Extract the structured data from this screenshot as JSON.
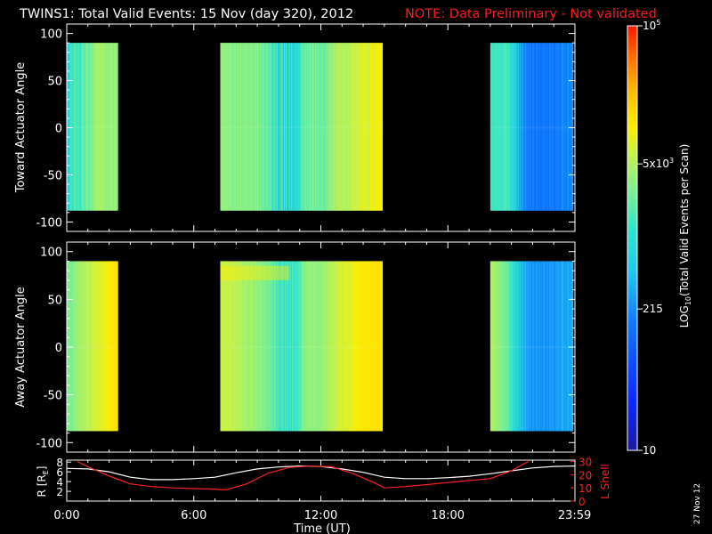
{
  "header": {
    "title": "TWINS1: Total Valid Events: 15 Nov (day 320), 2012",
    "note": "NOTE: Data Preliminary - Not validated",
    "note_color": "#ff1a1a"
  },
  "footer": {
    "date_stamp": "27 Nov 12"
  },
  "chart_data": [
    {
      "type": "heatmap",
      "panel": "toward",
      "title": "",
      "xlabel": "",
      "ylabel": "Toward Actuator Angle",
      "ylim": [
        -110,
        110
      ],
      "yticks": [
        100,
        50,
        0,
        -50,
        -100
      ],
      "ytick_labels": [
        "100",
        "50",
        "0",
        "-50",
        "-100"
      ],
      "y_extent": [
        -88,
        90
      ],
      "x_range_hours": [
        0,
        24
      ],
      "data_blocks_hours": [
        [
          0.0,
          2.4
        ],
        [
          7.25,
          14.9
        ],
        [
          20.0,
          23.9
        ]
      ],
      "colorscale": "log10 total valid events per scan",
      "column_levels_description": "blocks 1-2 mostly cyan/green (~log 2.8-3.8); block 3 cyan early then blue (~log 2.0-2.5) late",
      "blocks": [
        {
          "start": 0.0,
          "end": 2.4,
          "levels": [
            3.0,
            2.7,
            3.1,
            3.2,
            3.0,
            3.2,
            3.3,
            3.1,
            3.2,
            3.2,
            3.1,
            3.3,
            3.4,
            3.2,
            3.4,
            3.5,
            3.4,
            3.3,
            3.5,
            3.4,
            3.5,
            3.6,
            3.6,
            3.7,
            3.6,
            3.7,
            3.6,
            3.7,
            3.6,
            3.6,
            3.5,
            3.6,
            3.5,
            3.6,
            3.7,
            3.5,
            3.6,
            3.6,
            3.5
          ]
        },
        {
          "start": 7.25,
          "end": 14.9,
          "levels": [
            3.6,
            3.6,
            3.5,
            3.6,
            3.5,
            3.6,
            3.5,
            3.6,
            3.5,
            3.6,
            3.5,
            3.6,
            3.5,
            3.5,
            3.4,
            3.6,
            3.5,
            3.4,
            3.6,
            3.5,
            3.4,
            3.5,
            3.6,
            3.4,
            3.5,
            3.4,
            3.6,
            3.5,
            3.4,
            3.5,
            3.5,
            3.4,
            3.5,
            3.6,
            3.4,
            3.5,
            3.4,
            3.5,
            3.6,
            3.4,
            3.6,
            3.5,
            3.3,
            3.5,
            3.4,
            3.3,
            3.5,
            3.4,
            3.2,
            3.4,
            3.3,
            3.4,
            3.3,
            3.2,
            3.4,
            3.3,
            3.1,
            2.9,
            3.3,
            3.2,
            2.8,
            3.3,
            3.1,
            2.5,
            3.2,
            2.7,
            3.3,
            3.2,
            2.6,
            3.3,
            2.8,
            3.0,
            3.2,
            2.5,
            3.1,
            3.0,
            2.8,
            3.2,
            2.9,
            2.7,
            3.0,
            2.9,
            3.0,
            2.8,
            3.1,
            3.0,
            3.1,
            3.2,
            3.3,
            3.4,
            3.2,
            3.3,
            3.5,
            3.3,
            3.4,
            3.3,
            3.4,
            3.5,
            3.4,
            3.3,
            3.6,
            3.4,
            3.3,
            3.5,
            3.4,
            3.3,
            3.5,
            3.3,
            3.4,
            3.3,
            3.4,
            3.5,
            3.3,
            3.3,
            3.4,
            3.4,
            3.5,
            3.5,
            3.5,
            3.6,
            3.6,
            3.5,
            3.6,
            3.7,
            3.6,
            3.6,
            3.7,
            3.7,
            3.7,
            3.7,
            3.8,
            3.7,
            3.7,
            3.7,
            3.7,
            3.8,
            3.7,
            3.7,
            3.7,
            3.8,
            3.7,
            3.7,
            3.8,
            3.8,
            3.8,
            3.9,
            3.8,
            3.8,
            3.8,
            3.9,
            3.8,
            3.9,
            3.8,
            3.9,
            3.9,
            3.9,
            4.0,
            3.9,
            4.0,
            3.9,
            3.9,
            3.8,
            3.9,
            4.0,
            3.9,
            4.0,
            3.9,
            3.9,
            4.0,
            4.0,
            4.0,
            4.0,
            4.0,
            4.0,
            4.0,
            4.0
          ]
        },
        {
          "start": 20.0,
          "end": 23.9,
          "levels": [
            3.1,
            3.2,
            3.1,
            3.2,
            3.1,
            3.2,
            3.2,
            3.1,
            3.2,
            3.2,
            3.1,
            3.2,
            3.1,
            3.2,
            3.2,
            3.3,
            3.2,
            3.1,
            3.2,
            3.1,
            3.0,
            2.9,
            3.1,
            2.8,
            3.0,
            2.7,
            2.9,
            2.5,
            2.8,
            2.4,
            2.6,
            2.3,
            2.5,
            2.4,
            2.2,
            2.4,
            2.3,
            2.2,
            2.3,
            2.1,
            2.3,
            2.2,
            2.1,
            2.3,
            2.2,
            2.1,
            2.2,
            2.3,
            2.1,
            2.2,
            2.2,
            2.1,
            2.2,
            2.1,
            2.3,
            2.2,
            2.1,
            2.2,
            2.2,
            2.1,
            2.3,
            2.2,
            2.2,
            2.3,
            2.2,
            2.1,
            2.2,
            2.3,
            2.2,
            2.3,
            2.2,
            2.2,
            2.3,
            2.4,
            2.3,
            2.2,
            2.3,
            2.2,
            2.3,
            2.4,
            2.2,
            2.3,
            2.3,
            2.4
          ]
        }
      ]
    },
    {
      "type": "heatmap",
      "panel": "away",
      "title": "",
      "xlabel": "",
      "ylabel": "Away Actuator Angle",
      "ylim": [
        -110,
        110
      ],
      "yticks": [
        100,
        50,
        0,
        -50,
        -100
      ],
      "ytick_labels": [
        "100",
        "50",
        "0",
        "-50",
        "-100"
      ],
      "y_extent": [
        -88,
        90
      ],
      "x_range_hours": [
        0,
        24
      ],
      "data_blocks_hours": [
        [
          0.0,
          2.4
        ],
        [
          7.25,
          14.9
        ],
        [
          20.0,
          23.9
        ]
      ],
      "colorscale": "log10 total valid events per scan",
      "column_levels_description": "block 1 green to yellow (~log 3.3-4.1); block 2 yellow early, blue-cyan mid, yellow late; band near +75 deg brighter early in block 2; block 3 cyan then blue",
      "band": {
        "angle_range": [
          70,
          85
        ],
        "hours": [
          7.25,
          10.5
        ],
        "level_boost": 0.25
      },
      "blocks": [
        {
          "start": 0.0,
          "end": 2.4,
          "levels": [
            3.4,
            3.4,
            3.5,
            3.4,
            3.5,
            3.5,
            3.6,
            3.5,
            3.6,
            3.6,
            3.7,
            3.6,
            3.7,
            3.7,
            3.7,
            3.8,
            3.8,
            3.7,
            3.8,
            3.8,
            3.8,
            3.9,
            3.8,
            3.9,
            3.9,
            3.9,
            3.9,
            4.0,
            3.9,
            4.0,
            4.0,
            4.0,
            4.0,
            4.1,
            4.0,
            4.1,
            4.1,
            4.1,
            4.1
          ]
        },
        {
          "start": 7.25,
          "end": 14.9,
          "levels": [
            3.8,
            3.8,
            3.8,
            3.8,
            3.8,
            3.9,
            3.8,
            3.8,
            3.8,
            3.8,
            3.8,
            3.8,
            3.8,
            3.7,
            3.8,
            3.8,
            3.7,
            3.8,
            3.7,
            3.7,
            3.8,
            3.7,
            3.7,
            3.7,
            3.6,
            3.7,
            3.7,
            3.6,
            3.7,
            3.6,
            3.6,
            3.6,
            3.6,
            3.7,
            3.6,
            3.6,
            3.5,
            3.6,
            3.6,
            3.5,
            3.6,
            3.5,
            3.5,
            3.6,
            3.5,
            3.4,
            3.5,
            3.5,
            3.4,
            3.5,
            3.4,
            3.3,
            3.5,
            3.4,
            3.3,
            3.4,
            3.3,
            3.2,
            3.4,
            3.3,
            3.1,
            3.3,
            3.2,
            2.9,
            3.2,
            3.0,
            3.3,
            3.2,
            2.8,
            3.3,
            3.0,
            3.1,
            3.3,
            2.9,
            3.2,
            3.1,
            3.0,
            3.3,
            3.1,
            3.0,
            3.2,
            3.1,
            3.2,
            3.1,
            3.3,
            3.2,
            3.3,
            3.4,
            3.5,
            3.5,
            3.4,
            3.5,
            3.6,
            3.5,
            3.6,
            3.5,
            3.6,
            3.6,
            3.5,
            3.5,
            3.6,
            3.6,
            3.5,
            3.6,
            3.5,
            3.5,
            3.6,
            3.5,
            3.6,
            3.5,
            3.6,
            3.7,
            3.6,
            3.6,
            3.6,
            3.7,
            3.7,
            3.7,
            3.7,
            3.8,
            3.8,
            3.7,
            3.8,
            3.8,
            3.8,
            3.8,
            3.8,
            3.9,
            3.9,
            3.9,
            3.9,
            3.8,
            3.9,
            3.9,
            3.9,
            4.0,
            3.9,
            3.9,
            3.9,
            4.0,
            3.9,
            3.9,
            4.0,
            4.0,
            4.0,
            4.0,
            4.0,
            4.0,
            4.0,
            4.1,
            4.0,
            4.1,
            4.0,
            4.1,
            4.1,
            4.0,
            4.1,
            4.1,
            4.1,
            4.0,
            4.1,
            4.1,
            4.1,
            4.1,
            4.1,
            4.1,
            4.1,
            4.1,
            4.1,
            4.1,
            4.1,
            4.1,
            4.1,
            4.1
          ]
        },
        {
          "start": 20.0,
          "end": 23.9,
          "levels": [
            3.7,
            3.7,
            3.6,
            3.7,
            3.6,
            3.6,
            3.6,
            3.5,
            3.6,
            3.5,
            3.5,
            3.5,
            3.4,
            3.5,
            3.4,
            3.4,
            3.3,
            3.4,
            3.3,
            3.2,
            3.2,
            3.1,
            3.2,
            2.9,
            3.1,
            2.8,
            3.0,
            2.7,
            2.9,
            2.6,
            2.8,
            2.5,
            2.7,
            2.6,
            2.4,
            2.7,
            2.5,
            2.4,
            2.6,
            2.3,
            2.5,
            2.4,
            2.3,
            2.5,
            2.4,
            2.3,
            2.4,
            2.5,
            2.3,
            2.4,
            2.4,
            2.3,
            2.4,
            2.3,
            2.5,
            2.4,
            2.3,
            2.4,
            2.4,
            2.3,
            2.5,
            2.4,
            2.4,
            2.5,
            2.4,
            2.3,
            2.4,
            2.5,
            2.4,
            2.5,
            2.4,
            2.4,
            2.5,
            2.6,
            2.5,
            2.4,
            2.5,
            2.4,
            2.5,
            2.6,
            2.4,
            2.5,
            2.5,
            2.6
          ]
        }
      ]
    },
    {
      "type": "line",
      "panel": "ephemeris",
      "title": "",
      "xlabel": "Time (UT)",
      "ylabel": "R [R",
      "ylabel_sub": "E",
      "ylabel_close": "]",
      "ylabel_right": "L Shell",
      "right_color": "#ff2020",
      "xlim": [
        0,
        24
      ],
      "xticks": [
        0,
        6,
        12,
        18,
        23.983
      ],
      "xtick_labels": [
        "0:00",
        "6:00",
        "12:00",
        "18:00",
        "23:59"
      ],
      "ylim_left": [
        0,
        8.4
      ],
      "yticks_left": [
        8,
        6,
        4,
        2
      ],
      "ytick_labels_left": [
        "8",
        "6",
        "4",
        "2"
      ],
      "ylim_right": [
        0,
        31
      ],
      "yticks_right": [
        30,
        20,
        10,
        0
      ],
      "ytick_labels_right": [
        "30",
        "20",
        "10",
        "0"
      ],
      "series": [
        {
          "axis": "left",
          "color": "#ffffff",
          "x": [
            0,
            1,
            2,
            3,
            4,
            5,
            6,
            7,
            8,
            9,
            10,
            11,
            12,
            13,
            14,
            15,
            16,
            17,
            18,
            19,
            20,
            21,
            22,
            23,
            24
          ],
          "y": [
            6.7,
            6.6,
            6.0,
            4.9,
            4.4,
            4.4,
            4.6,
            4.9,
            5.8,
            6.6,
            7.0,
            7.2,
            7.1,
            6.6,
            5.9,
            4.9,
            4.6,
            4.6,
            4.8,
            5.1,
            5.6,
            6.2,
            6.8,
            7.1,
            7.2
          ]
        },
        {
          "axis": "right",
          "color": "#ff2020",
          "x": [
            0.5,
            1.0,
            2.0,
            3.0,
            4.0,
            5.0,
            6.0,
            7.0,
            7.5,
            8.5,
            9.5,
            10.5,
            11.5,
            12.5,
            13.5,
            14.5,
            15.0,
            16.0,
            17.0,
            18.0,
            19.0,
            20.0,
            21.0,
            21.8
          ],
          "y": [
            30.0,
            26.0,
            19.0,
            13.0,
            11.0,
            10.0,
            9.5,
            9.0,
            8.5,
            13.0,
            21.0,
            25.5,
            26.5,
            26.0,
            21.0,
            14.0,
            10.0,
            11.0,
            12.5,
            14.0,
            15.5,
            17.0,
            23.0,
            30.0
          ]
        }
      ]
    }
  ],
  "colorbar": {
    "label_pre": "LOG",
    "label_sub": "10",
    "label_post": "(Total Valid Events per Scan)",
    "log_min": 1,
    "log_max": 5,
    "ticks": [
      {
        "log": 5,
        "mantissa": "10",
        "exponent": "5"
      },
      {
        "log": 3.69897,
        "mantissa": "5x10",
        "exponent": "3"
      },
      {
        "log": 2.33244,
        "mantissa": "215",
        "exponent": ""
      },
      {
        "log": 1,
        "mantissa": "10",
        "exponent": ""
      }
    ],
    "stops": [
      {
        "pos": 0.0,
        "color": "#1a1a9e"
      },
      {
        "pos": 0.12,
        "color": "#0a2aff"
      },
      {
        "pos": 0.3,
        "color": "#0f78ff"
      },
      {
        "pos": 0.42,
        "color": "#23c8ee"
      },
      {
        "pos": 0.52,
        "color": "#30e4cc"
      },
      {
        "pos": 0.62,
        "color": "#84f08a"
      },
      {
        "pos": 0.7,
        "color": "#c6f24a"
      },
      {
        "pos": 0.76,
        "color": "#ffee00"
      },
      {
        "pos": 0.84,
        "color": "#ffbf00"
      },
      {
        "pos": 0.93,
        "color": "#ff6a00"
      },
      {
        "pos": 1.0,
        "color": "#ff1600"
      }
    ]
  }
}
